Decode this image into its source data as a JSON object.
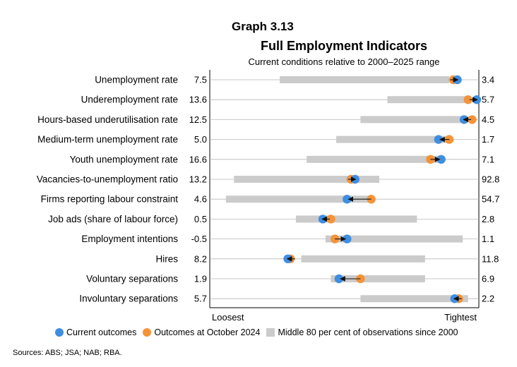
{
  "header": {
    "graph_label": "Graph 3.13",
    "title": "Full Employment Indicators",
    "subtitle": "Current conditions relative to 2000–2025 range"
  },
  "chart_data": {
    "type": "dot-range",
    "title": "Full Employment Indicators",
    "subtitle": "Current conditions relative to 2000–2025 range",
    "x_scale": {
      "min_label": "Loosest",
      "max_label": "Tightest",
      "range": [
        0,
        1
      ]
    },
    "rows": [
      {
        "label": "Unemployment rate",
        "left_value": "7.5",
        "right_value": "3.4",
        "band": [
          0.26,
          0.89
        ],
        "current": 0.92,
        "previous": 0.905
      },
      {
        "label": "Underemployment rate",
        "left_value": "13.6",
        "right_value": "5.7",
        "band": [
          0.66,
          0.97
        ],
        "current": 0.992,
        "previous": 0.96
      },
      {
        "label": "Hours-based underutilisation rate",
        "left_value": "12.5",
        "right_value": "4.5",
        "band": [
          0.56,
          0.95
        ],
        "current": 0.945,
        "previous": 0.975
      },
      {
        "label": "Medium-term unemployment rate",
        "left_value": "5.0",
        "right_value": "1.7",
        "band": [
          0.47,
          0.89
        ],
        "current": 0.85,
        "previous": 0.89
      },
      {
        "label": "Youth unemployment rate",
        "left_value": "16.6",
        "right_value": "7.1",
        "band": [
          0.36,
          0.85
        ],
        "current": 0.86,
        "previous": 0.82
      },
      {
        "label": "Vacancies-to-unemployment ratio",
        "left_value": "13.2",
        "right_value": "92.8",
        "band": [
          0.09,
          0.63
        ],
        "current": 0.54,
        "previous": 0.525
      },
      {
        "label": "Firms reporting labour constraint",
        "left_value": "4.6",
        "right_value": "54.7",
        "band": [
          0.06,
          0.59
        ],
        "current": 0.51,
        "previous": 0.6
      },
      {
        "label": "Job ads (share of labour force)",
        "left_value": "0.5",
        "right_value": "2.8",
        "band": [
          0.32,
          0.77
        ],
        "current": 0.42,
        "previous": 0.45
      },
      {
        "label": "Employment intentions",
        "left_value": "-0.5",
        "right_value": "1.1",
        "band": [
          0.43,
          0.94
        ],
        "current": 0.51,
        "previous": 0.465
      },
      {
        "label": "Hires",
        "left_value": "8.2",
        "right_value": "11.8",
        "band": [
          0.34,
          0.8
        ],
        "current": 0.29,
        "previous": 0.3
      },
      {
        "label": "Voluntary separations",
        "left_value": "1.9",
        "right_value": "6.9",
        "band": [
          0.45,
          0.8
        ],
        "current": 0.48,
        "previous": 0.56
      },
      {
        "label": "Involuntary separations",
        "left_value": "5.7",
        "right_value": "2.2",
        "band": [
          0.56,
          0.96
        ],
        "current": 0.91,
        "previous": 0.925
      }
    ],
    "legend": [
      {
        "name": "Current outcomes",
        "color": "#3f8ee0"
      },
      {
        "name": "Outcomes at October 2024",
        "color": "#f59338"
      },
      {
        "name": "Middle 80 per cent of observations since 2000",
        "color": "#cbcbcb"
      }
    ],
    "colors": {
      "current": "#3f8ee0",
      "previous": "#f59338",
      "band": "#cbcbcb",
      "grid": "#b8b8b8",
      "arrow": "#111111"
    }
  },
  "footer": {
    "sources": "Sources: ABS; JSA; NAB; RBA."
  }
}
